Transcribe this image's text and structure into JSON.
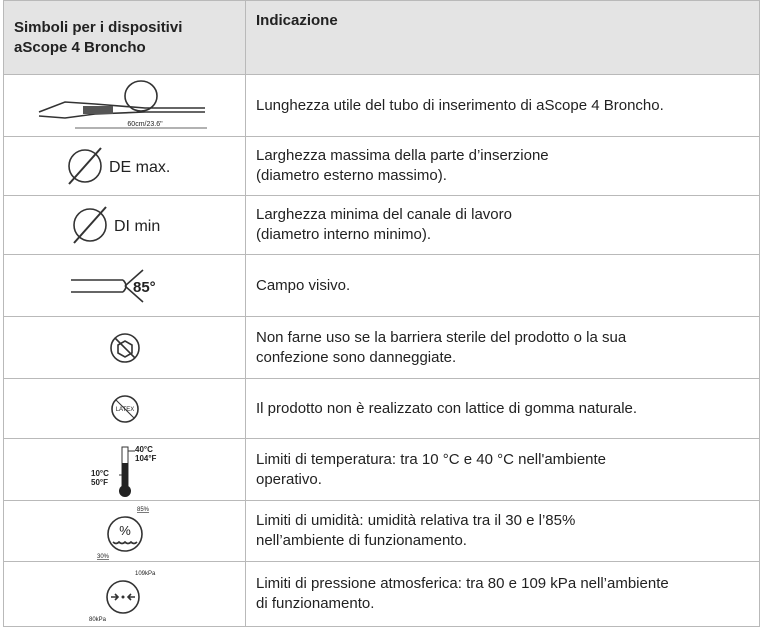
{
  "table": {
    "header": [
      [
        "Simboli per i dispositivi",
        "aScope 4 Broncho"
      ],
      [
        "Indicazione"
      ]
    ],
    "rows": [
      {
        "symbol": [
          "60cm/23.6\""
        ],
        "description": [
          "Lunghezza utile del tubo di inserimento di aScope 4 Broncho."
        ]
      },
      {
        "symbol": [
          "DE max."
        ],
        "description": [
          "Larghezza massima della parte d’inserzione",
          "(diametro esterno massimo)."
        ]
      },
      {
        "symbol": [
          "DI min"
        ],
        "description": [
          "Larghezza minima del canale di lavoro",
          "(diametro interno minimo)."
        ]
      },
      {
        "symbol": [
          "85°"
        ],
        "description": [
          "Campo visivo."
        ]
      },
      {
        "symbol": [],
        "description": [
          "Non farne uso se la barriera sterile del prodotto o la sua",
          "confezione sono danneggiate."
        ]
      },
      {
        "symbol": [
          "LATEX"
        ],
        "description": [
          "Il prodotto non è realizzato con lattice di gomma naturale."
        ]
      },
      {
        "symbol": [
          "40°C",
          "104°F",
          "10°C",
          "50°F"
        ],
        "description": [
          "Limiti di temperatura: tra 10 °C e 40 °C nell'ambiente",
          "operativo."
        ]
      },
      {
        "symbol": [
          "85%",
          "%",
          "30%"
        ],
        "description": [
          "Limiti di umidità: umidità relativa tra il 30 e l’85%",
          "nell’ambiente di funzionamento."
        ]
      },
      {
        "symbol": [
          "109kPa",
          "80kPa"
        ],
        "description": [
          "Limiti di pressione atmosferica: tra 80 e 109 kPa nell’ambiente",
          "di funzionamento."
        ]
      }
    ]
  }
}
